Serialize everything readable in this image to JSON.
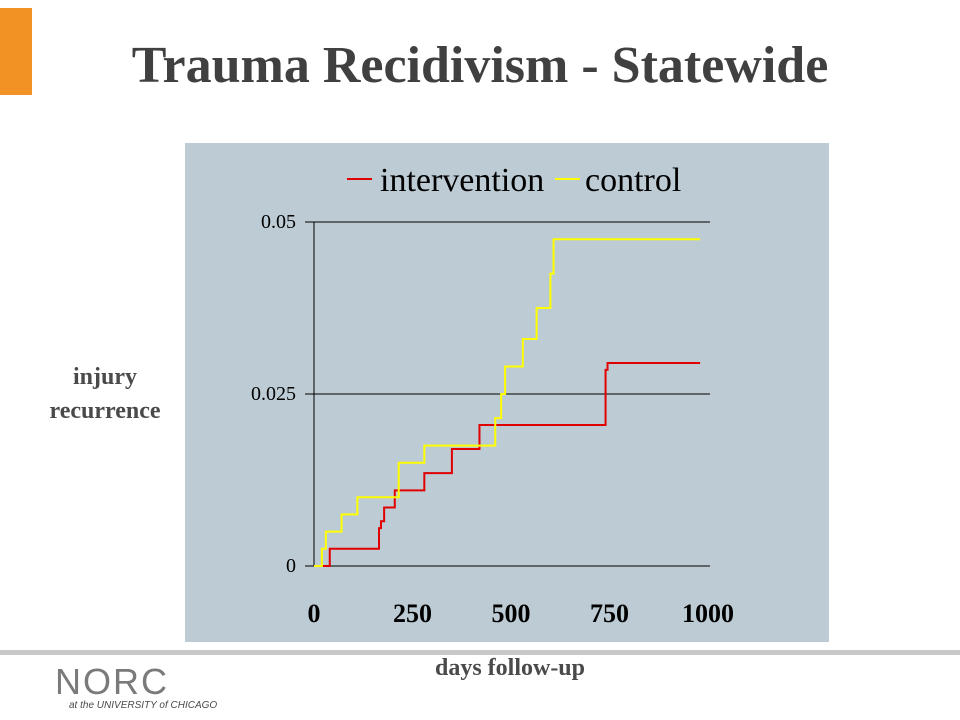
{
  "slide": {
    "title": "Trauma Recidivism - Statewide",
    "ylabel": "injury recurrence",
    "xlabel": "days follow-up",
    "accent_color": "#f39224",
    "logo": {
      "text": "NORC",
      "subtext": "at the UNIVERSITY of CHICAGO"
    }
  },
  "chart_data": {
    "type": "line",
    "step": true,
    "title": "",
    "xlabel": "days follow-up",
    "ylabel": "injury recurrence",
    "xlim": [
      0,
      1000
    ],
    "ylim": [
      0,
      0.05
    ],
    "xticks": [
      "0",
      "250",
      "500",
      "750",
      "1000"
    ],
    "xtick_values": [
      0,
      250,
      500,
      750,
      1000
    ],
    "yticks": [
      "0",
      "0.025",
      "0.05"
    ],
    "ytick_values": [
      0,
      0.025,
      0.05
    ],
    "grid": "horizontal",
    "legend_position": "top",
    "background": "#bccbd4",
    "series": [
      {
        "name": "intervention",
        "color": "#e00000",
        "x": [
          0,
          40,
          165,
          170,
          178,
          205,
          280,
          350,
          420,
          740,
          745,
          980
        ],
        "y": [
          0,
          0.0025,
          0.0055,
          0.0065,
          0.0085,
          0.011,
          0.0135,
          0.017,
          0.0205,
          0.0285,
          0.0295,
          0.0295
        ]
      },
      {
        "name": "control",
        "color": "#ffff00",
        "x": [
          0,
          20,
          30,
          70,
          110,
          215,
          280,
          460,
          475,
          485,
          530,
          565,
          600,
          608,
          980
        ],
        "y": [
          0,
          0.0025,
          0.005,
          0.0075,
          0.01,
          0.015,
          0.0175,
          0.0215,
          0.025,
          0.029,
          0.033,
          0.0375,
          0.0425,
          0.0475,
          0.0475
        ]
      }
    ]
  }
}
